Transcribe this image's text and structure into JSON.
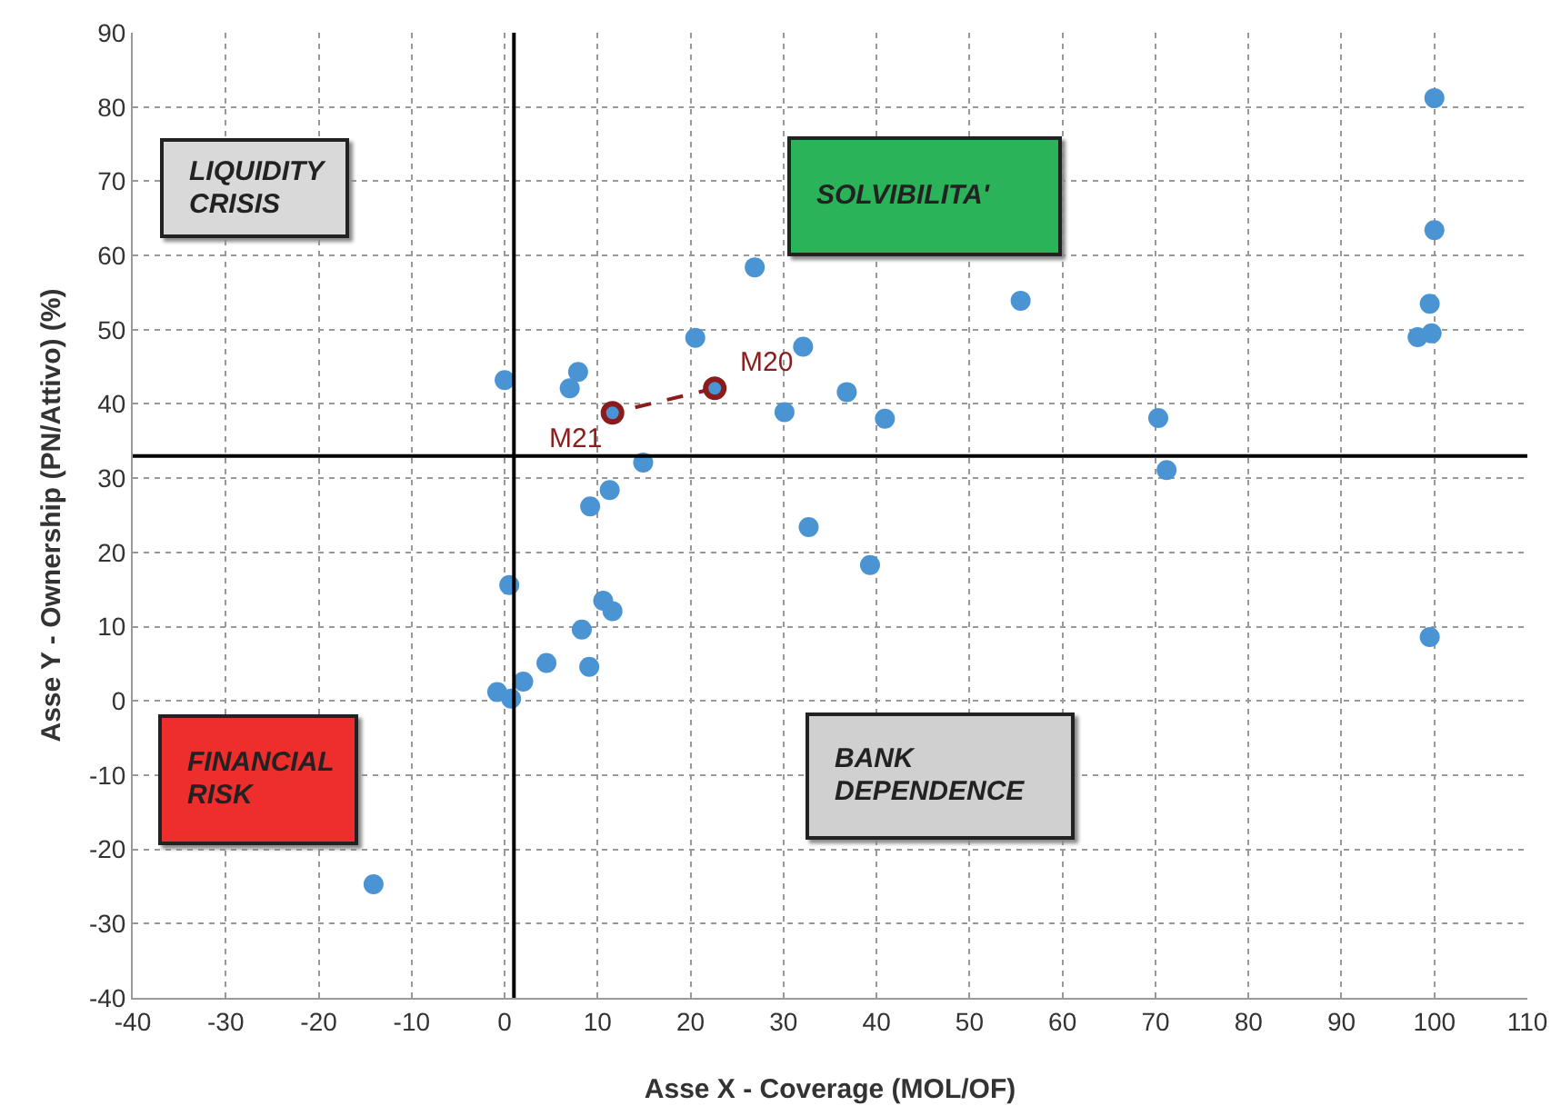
{
  "chart_data": {
    "type": "scatter",
    "xlabel": "Asse X - Coverage (MOL/OF)",
    "ylabel": "Asse Y - Ownership (PN/Attivo) (%)",
    "xlim": [
      -40,
      110
    ],
    "xticks": [
      -40,
      -30,
      -20,
      -10,
      0,
      10,
      20,
      30,
      40,
      50,
      60,
      70,
      80,
      90,
      100,
      110
    ],
    "ylim": [
      -40,
      90
    ],
    "yticks": [
      -40,
      -30,
      -20,
      -10,
      0,
      10,
      20,
      30,
      40,
      50,
      60,
      70,
      80,
      90
    ],
    "grid": true,
    "marker": "circle",
    "series": [
      {
        "color": "#4a94d4",
        "x": [
          100,
          100,
          26.9,
          55.5,
          99.5,
          98.2,
          99.7,
          32.1,
          36.8,
          30.1,
          40.9,
          70.3,
          71.2,
          32.7,
          39.3,
          99.5,
          20.5,
          0,
          7.9,
          7,
          14.9,
          11.3,
          9.2,
          0.5,
          10.6,
          11.6,
          8.3,
          4.5,
          9.1,
          2,
          -0.8,
          0.7,
          -14.1
        ],
        "values": [
          81.2,
          63.4,
          58.4,
          53.9,
          53.5,
          49,
          49.5,
          47.7,
          41.6,
          38.9,
          38,
          38.1,
          31.1,
          23.4,
          18.3,
          8.6,
          48.9,
          43.2,
          44.3,
          42.1,
          32.1,
          28.4,
          26.2,
          15.6,
          13.5,
          12.1,
          9.6,
          5.1,
          4.6,
          2.6,
          1.2,
          0.3,
          -24.7
        ]
      },
      {
        "type": "line",
        "color": "#8b1c1c",
        "line_style": "dashed",
        "x": [
          22.6,
          11.6
        ],
        "values": [
          42.1,
          38.8
        ]
      }
    ],
    "ref_lines": [
      {
        "axis": "x",
        "value": 1,
        "color": "#000000"
      },
      {
        "axis": "y",
        "value": 33,
        "color": "#000000"
      }
    ],
    "annotations": [
      {
        "text": "M20",
        "x": 22.6,
        "y": 42.1
      },
      {
        "text": "M21",
        "x": 11.6,
        "y": 38.8
      },
      "LIQUIDITY CRISIS",
      "SOLVIBILITA'",
      "FINANCIAL RISK",
      "BANK DEPENDENCE"
    ]
  }
}
